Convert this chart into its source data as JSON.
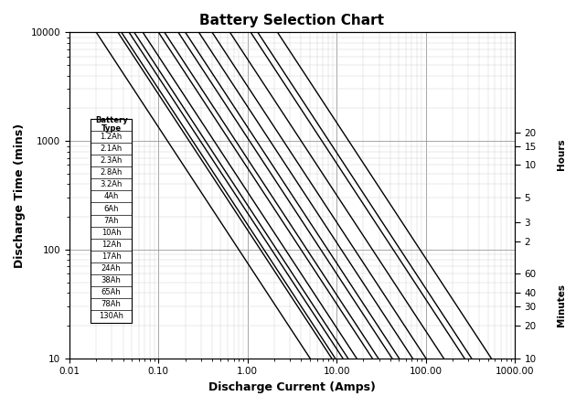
{
  "title": "Battery Selection Chart",
  "xlabel": "Discharge Current (Amps)",
  "ylabel": "Discharge Time (mins)",
  "xlim": [
    0.01,
    1000.0
  ],
  "ylim": [
    10,
    10000
  ],
  "batteries": [
    {
      "label": "1.2Ah",
      "capacity": 1.2,
      "i_max_factor": 10
    },
    {
      "label": "2.1Ah",
      "capacity": 2.1,
      "i_max_factor": 10
    },
    {
      "label": "2.3Ah",
      "capacity": 2.3,
      "i_max_factor": 10
    },
    {
      "label": "2.8Ah",
      "capacity": 2.8,
      "i_max_factor": 10
    },
    {
      "label": "3.2Ah",
      "capacity": 3.2,
      "i_max_factor": 10
    },
    {
      "label": "4Ah",
      "capacity": 4.0,
      "i_max_factor": 10
    },
    {
      "label": "6Ah",
      "capacity": 6.0,
      "i_max_factor": 10
    },
    {
      "label": "7Ah",
      "capacity": 7.0,
      "i_max_factor": 10
    },
    {
      "label": "10Ah",
      "capacity": 10.0,
      "i_max_factor": 10
    },
    {
      "label": "12Ah",
      "capacity": 12.0,
      "i_max_factor": 10
    },
    {
      "label": "17Ah",
      "capacity": 17.0,
      "i_max_factor": 10
    },
    {
      "label": "24Ah",
      "capacity": 24.0,
      "i_max_factor": 10
    },
    {
      "label": "38Ah",
      "capacity": 38.0,
      "i_max_factor": 10
    },
    {
      "label": "65Ah",
      "capacity": 65.0,
      "i_max_factor": 10
    },
    {
      "label": "78Ah",
      "capacity": 78.0,
      "i_max_factor": 10
    },
    {
      "label": "130Ah",
      "capacity": 130.0,
      "i_max_factor": 10
    }
  ],
  "hours_ticks": [
    20,
    15,
    10,
    5,
    3,
    2
  ],
  "minutes_ticks": [
    60,
    40,
    30,
    20,
    10
  ],
  "background_color": "#ffffff",
  "line_color": "#000000",
  "grid_major_color": "#999999",
  "grid_minor_color": "#cccccc",
  "legend_fontsize": 6.0,
  "title_fontsize": 11,
  "axis_label_fontsize": 9,
  "tick_fontsize": 7.5
}
